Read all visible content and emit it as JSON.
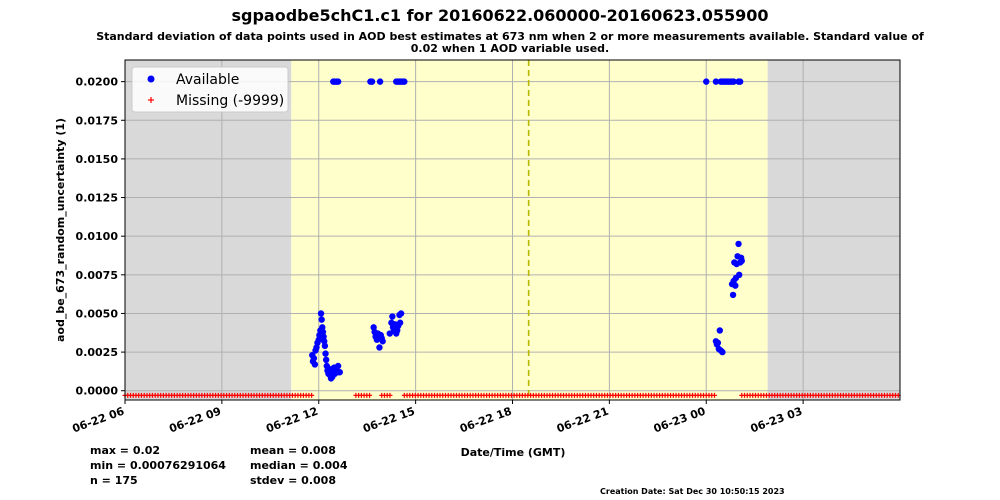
{
  "chart_data": {
    "type": "scatter",
    "title": "sgpaodbe5chC1.c1 for 20160622.060000-20160623.055900",
    "subtitle_lines": [
      "Standard deviation of data points used in AOD best estimates at 673 nm when 2 or more measurements available. Standard value of",
      "0.02 when 1 AOD variable used."
    ],
    "xlabel": "Date/Time (GMT)",
    "ylabel": "aod_be_673_random_uncertainty (1)",
    "x_range": [
      "2016-06-22 06:00",
      "2016-06-23 06:00"
    ],
    "ylim": [
      -0.0006,
      0.0214
    ],
    "x_ticks": [
      {
        "hour": 0,
        "label": "06-22 06"
      },
      {
        "hour": 3,
        "label": "06-22 09"
      },
      {
        "hour": 6,
        "label": "06-22 12"
      },
      {
        "hour": 9,
        "label": "06-22 15"
      },
      {
        "hour": 12,
        "label": "06-22 18"
      },
      {
        "hour": 15,
        "label": "06-22 21"
      },
      {
        "hour": 18,
        "label": "06-23 00"
      },
      {
        "hour": 21,
        "label": "06-23 03"
      }
    ],
    "y_ticks": [
      "0.0000",
      "0.0025",
      "0.0050",
      "0.0075",
      "0.0100",
      "0.0125",
      "0.0150",
      "0.0175",
      "0.0200"
    ],
    "grid": true,
    "legend_position": "top-left",
    "daylight_hours_since_start": [
      5.15,
      19.9
    ],
    "vertical_line_hour": 12.5,
    "colors": {
      "available": "#0000ff",
      "missing": "#ff0000",
      "night": "#d9d9d9",
      "day": "#ffffcc",
      "vline": "#b8b800",
      "grid": "#b0b0b0"
    },
    "series": [
      {
        "name": "Available",
        "marker": "circle",
        "points": [
          [
            5.8,
            0.0023
          ],
          [
            5.82,
            0.0019
          ],
          [
            5.85,
            0.0021
          ],
          [
            5.88,
            0.0017
          ],
          [
            5.9,
            0.0026
          ],
          [
            5.93,
            0.0028
          ],
          [
            5.96,
            0.0031
          ],
          [
            6.0,
            0.0033
          ],
          [
            6.02,
            0.0036
          ],
          [
            6.05,
            0.0039
          ],
          [
            6.07,
            0.005
          ],
          [
            6.09,
            0.0046
          ],
          [
            6.11,
            0.0041
          ],
          [
            6.13,
            0.0038
          ],
          [
            6.15,
            0.0035
          ],
          [
            6.17,
            0.0032
          ],
          [
            6.19,
            0.0029
          ],
          [
            6.21,
            0.0024
          ],
          [
            6.23,
            0.002
          ],
          [
            6.25,
            0.0016
          ],
          [
            6.27,
            0.0013
          ],
          [
            6.3,
            0.0011
          ],
          [
            6.35,
            0.001
          ],
          [
            6.38,
            0.0008
          ],
          [
            6.42,
            0.0009
          ],
          [
            6.45,
            0.0012
          ],
          [
            6.48,
            0.0015
          ],
          [
            6.52,
            0.0014
          ],
          [
            6.56,
            0.0013
          ],
          [
            6.6,
            0.0016
          ],
          [
            6.62,
            0.0012
          ],
          [
            6.65,
            0.0012
          ],
          [
            6.4,
            0.0014
          ],
          [
            6.5,
            0.0011
          ],
          [
            6.45,
            0.02
          ],
          [
            6.5,
            0.02
          ],
          [
            6.55,
            0.02
          ],
          [
            6.6,
            0.02
          ],
          [
            7.6,
            0.02
          ],
          [
            7.65,
            0.02
          ],
          [
            7.9,
            0.02
          ],
          [
            7.7,
            0.0041
          ],
          [
            7.73,
            0.0038
          ],
          [
            7.76,
            0.0035
          ],
          [
            7.8,
            0.0033
          ],
          [
            7.83,
            0.0037
          ],
          [
            7.86,
            0.0036
          ],
          [
            7.88,
            0.0028
          ],
          [
            7.92,
            0.0036
          ],
          [
            7.95,
            0.0034
          ],
          [
            7.98,
            0.0032
          ],
          [
            8.2,
            0.0037
          ],
          [
            8.25,
            0.0044
          ],
          [
            8.28,
            0.0048
          ],
          [
            8.3,
            0.0041
          ],
          [
            8.33,
            0.0039
          ],
          [
            8.36,
            0.0043
          ],
          [
            8.4,
            0.0037
          ],
          [
            8.43,
            0.0039
          ],
          [
            8.46,
            0.0042
          ],
          [
            8.5,
            0.0049
          ],
          [
            8.52,
            0.0044
          ],
          [
            8.55,
            0.005
          ],
          [
            8.4,
            0.02
          ],
          [
            8.45,
            0.02
          ],
          [
            8.5,
            0.02
          ],
          [
            8.55,
            0.02
          ],
          [
            8.6,
            0.02
          ],
          [
            8.65,
            0.02
          ],
          [
            18.0,
            0.02
          ],
          [
            18.3,
            0.02
          ],
          [
            18.45,
            0.02
          ],
          [
            18.5,
            0.02
          ],
          [
            18.55,
            0.02
          ],
          [
            18.6,
            0.02
          ],
          [
            18.65,
            0.02
          ],
          [
            18.7,
            0.02
          ],
          [
            18.75,
            0.02
          ],
          [
            18.8,
            0.02
          ],
          [
            18.85,
            0.02
          ],
          [
            19.0,
            0.02
          ],
          [
            19.05,
            0.02
          ],
          [
            18.3,
            0.0032
          ],
          [
            18.33,
            0.003
          ],
          [
            18.36,
            0.0031
          ],
          [
            18.39,
            0.0027
          ],
          [
            18.42,
            0.0039
          ],
          [
            18.45,
            0.0026
          ],
          [
            18.5,
            0.0025
          ],
          [
            18.8,
            0.0069
          ],
          [
            18.83,
            0.0062
          ],
          [
            18.85,
            0.0071
          ],
          [
            18.87,
            0.0083
          ],
          [
            18.9,
            0.0068
          ],
          [
            18.92,
            0.0073
          ],
          [
            18.94,
            0.0082
          ],
          [
            18.97,
            0.0087
          ],
          [
            19.0,
            0.0095
          ],
          [
            19.02,
            0.0075
          ],
          [
            19.05,
            0.0083
          ],
          [
            19.08,
            0.0086
          ],
          [
            19.1,
            0.0084
          ]
        ]
      },
      {
        "name": "Missing (-9999)",
        "marker": "plus",
        "y": -0.0003,
        "hour_ranges": [
          [
            0.0,
            5.8
          ],
          [
            7.15,
            7.65
          ],
          [
            7.95,
            8.25
          ],
          [
            8.65,
            18.3
          ],
          [
            19.1,
            24.0
          ]
        ],
        "step": 0.085
      }
    ],
    "stats": {
      "max": "max = 0.02",
      "min": "min = 0.00076291064",
      "n": "n = 175",
      "mean": "mean = 0.008",
      "median": "median = 0.004",
      "stdev": "stdev = 0.008"
    },
    "creation_date": "Creation Date: Sat Dec 30 10:50:15 2023"
  }
}
